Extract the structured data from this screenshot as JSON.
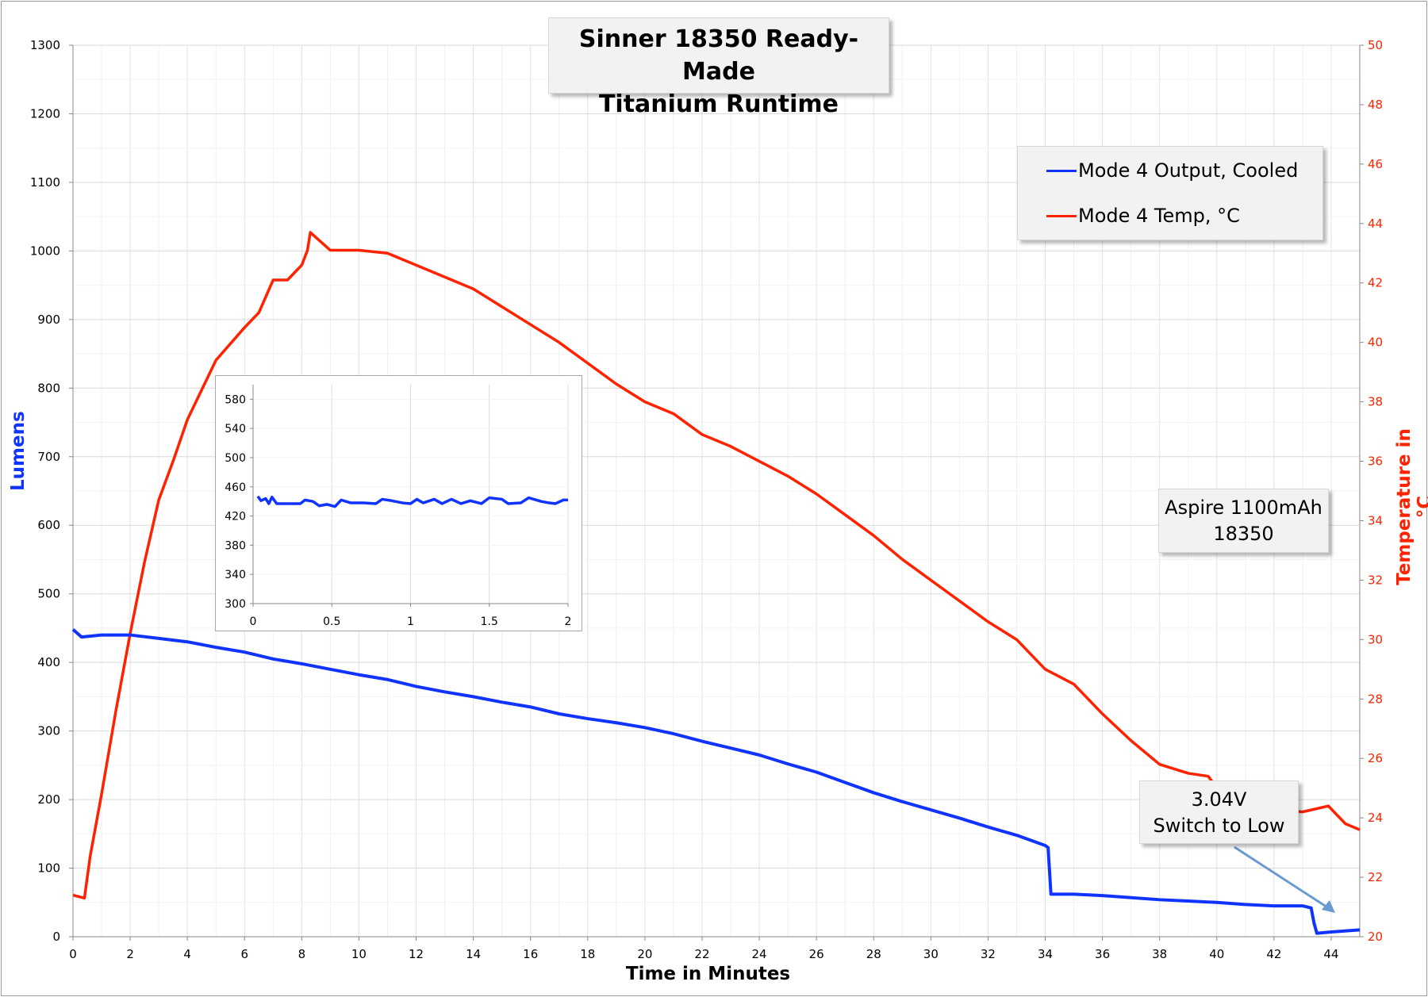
{
  "chart_data": [
    {
      "type": "line",
      "title": "Sinner 18350 Ready-Made Titanium Runtime",
      "title_lines": [
        "Sinner 18350 Ready-Made",
        "Titanium Runtime"
      ],
      "xlabel": "Time in Minutes",
      "ylabel": "Lumens",
      "y2label": "Temperature in °C",
      "xlim": [
        0,
        45
      ],
      "ylim": [
        0,
        1300
      ],
      "y2lim": [
        20,
        50
      ],
      "xticks": [
        0,
        2,
        4,
        6,
        8,
        10,
        12,
        14,
        16,
        18,
        20,
        22,
        24,
        26,
        28,
        30,
        32,
        34,
        36,
        38,
        40,
        42,
        44
      ],
      "yticks": [
        0,
        100,
        200,
        300,
        400,
        500,
        600,
        700,
        800,
        900,
        1000,
        1100,
        1200,
        1300
      ],
      "y2ticks": [
        20,
        22,
        24,
        26,
        28,
        30,
        32,
        34,
        36,
        38,
        40,
        42,
        44,
        46,
        48,
        50
      ],
      "grid": true,
      "legend_placement": "top-right",
      "series": [
        {
          "name": "Mode 4 Output, Cooled",
          "axis": "left",
          "color": "#1133ff",
          "x": [
            0,
            0.3,
            1,
            2,
            3,
            4,
            5,
            6,
            7,
            8,
            9,
            10,
            11,
            12,
            13,
            14,
            15,
            16,
            17,
            18,
            19,
            20,
            21,
            22,
            23,
            24,
            25,
            26,
            27,
            28,
            29,
            30,
            31,
            32,
            33,
            34,
            34.1,
            34.2,
            35,
            36,
            37,
            38,
            39,
            40,
            41,
            42,
            43,
            43.3,
            43.4,
            43.5,
            44,
            45
          ],
          "y": [
            448,
            437,
            440,
            440,
            435,
            430,
            422,
            415,
            405,
            398,
            390,
            382,
            375,
            365,
            357,
            350,
            342,
            335,
            325,
            318,
            312,
            305,
            296,
            285,
            275,
            265,
            252,
            240,
            225,
            210,
            197,
            185,
            173,
            160,
            148,
            133,
            130,
            62,
            62,
            60,
            57,
            54,
            52,
            50,
            47,
            45,
            45,
            42,
            20,
            5,
            7,
            10
          ]
        },
        {
          "name": "Mode 4 Temp, °C",
          "axis": "right",
          "color": "#ff2200",
          "x": [
            0,
            0.4,
            0.6,
            1,
            1.5,
            2,
            2.5,
            3,
            3.5,
            4,
            5,
            6,
            6.5,
            7,
            7.5,
            8,
            8.2,
            8.3,
            9,
            10,
            11,
            12,
            13,
            14,
            15,
            16,
            17,
            18,
            19,
            20,
            21,
            22,
            23,
            24,
            25,
            26,
            27,
            28,
            29,
            30,
            31,
            32,
            33,
            34,
            35,
            36,
            37,
            38,
            39,
            39.7,
            40,
            41,
            42,
            43,
            43.9,
            44.5,
            45
          ],
          "y": [
            21.4,
            21.3,
            22.7,
            24.8,
            27.6,
            30.2,
            32.6,
            34.7,
            36.0,
            37.4,
            39.4,
            40.5,
            41.0,
            42.1,
            42.1,
            42.6,
            43.1,
            43.7,
            43.1,
            43.1,
            43.0,
            42.6,
            42.2,
            41.8,
            41.2,
            40.6,
            40.0,
            39.3,
            38.6,
            38.0,
            37.6,
            36.9,
            36.5,
            36.0,
            35.5,
            34.9,
            34.2,
            33.5,
            32.7,
            32.0,
            31.3,
            30.6,
            30.0,
            29.0,
            28.5,
            27.5,
            26.6,
            25.8,
            25.5,
            25.4,
            25.0,
            24.6,
            24.3,
            24.2,
            24.4,
            23.8,
            23.6
          ]
        }
      ],
      "annotations": [
        {
          "text_lines": [
            "Aspire 1100mAh",
            "18350"
          ]
        },
        {
          "text_lines": [
            "3.04V",
            "Switch to Low"
          ],
          "arrow_to_x": 44
        }
      ]
    },
    {
      "type": "line",
      "xlim": [
        0,
        2
      ],
      "ylim": [
        300,
        600
      ],
      "xticks": [
        "0",
        "0.5",
        "1",
        "1.5",
        "2"
      ],
      "xtick_values": [
        0,
        0.5,
        1,
        1.5,
        2
      ],
      "yticks": [
        300,
        340,
        380,
        420,
        460,
        500,
        540,
        580
      ],
      "grid": true,
      "series": [
        {
          "color": "#1133ff",
          "x": [
            0.03,
            0.05,
            0.08,
            0.1,
            0.12,
            0.15,
            0.2,
            0.3,
            0.33,
            0.38,
            0.42,
            0.47,
            0.52,
            0.56,
            0.62,
            0.7,
            0.78,
            0.82,
            0.88,
            0.95,
            1.0,
            1.04,
            1.08,
            1.15,
            1.2,
            1.26,
            1.32,
            1.38,
            1.45,
            1.5,
            1.58,
            1.62,
            1.7,
            1.75,
            1.83,
            1.88,
            1.92,
            1.97,
            2.0
          ],
          "y": [
            447,
            441,
            444,
            437,
            446,
            437,
            437,
            437,
            442,
            440,
            434,
            436,
            433,
            442,
            438,
            438,
            437,
            443,
            441,
            438,
            437,
            443,
            438,
            443,
            437,
            443,
            437,
            441,
            437,
            445,
            443,
            437,
            438,
            445,
            440,
            438,
            437,
            442,
            442
          ]
        }
      ]
    }
  ]
}
